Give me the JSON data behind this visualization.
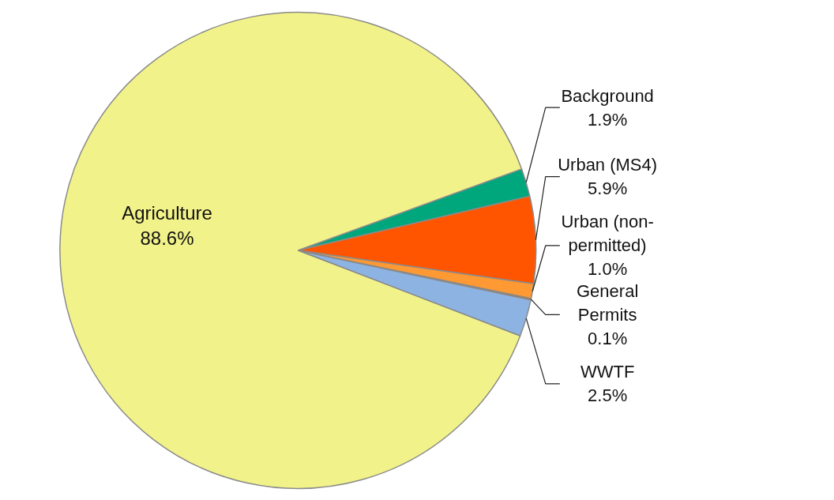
{
  "chart_data": {
    "type": "pie",
    "categories": [
      "Background",
      "Urban (MS4)",
      "Urban (non-permitted)",
      "General Permits",
      "WWTF",
      "Agriculture"
    ],
    "values": [
      1.9,
      5.9,
      1.0,
      0.1,
      2.5,
      88.6
    ],
    "colors": [
      "#00a77d",
      "#ff5500",
      "#ff9933",
      "#cc6600",
      "#8db3e2",
      "#f2f28a"
    ],
    "value_labels": [
      "1.9%",
      "5.9%",
      "1.0%",
      "0.1%",
      "2.5%",
      "88.6%"
    ]
  }
}
